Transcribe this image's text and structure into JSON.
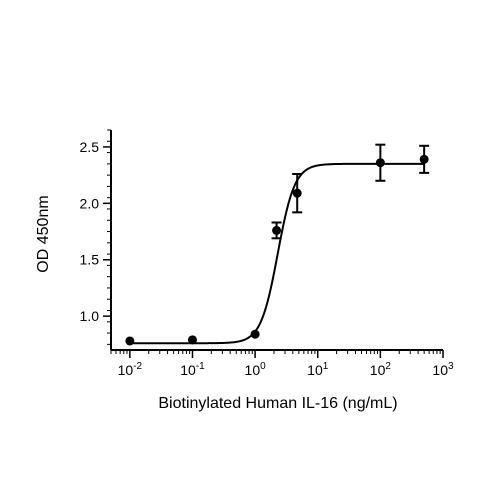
{
  "chart_data": {
    "type": "scatter",
    "title": "",
    "xlabel": "Biotinylated Human IL-16 (ng/mL)",
    "ylabel": "OD 450nm",
    "x_scale": "log",
    "xlim": [
      0.005,
      1000
    ],
    "ylim": [
      0.7,
      2.65
    ],
    "x_ticks": [
      0.01,
      0.1,
      1,
      10,
      100,
      1000
    ],
    "x_tick_labels": [
      {
        "base": "10",
        "exp": "-2"
      },
      {
        "base": "10",
        "exp": "-1"
      },
      {
        "base": "10",
        "exp": "0"
      },
      {
        "base": "10",
        "exp": "1"
      },
      {
        "base": "10",
        "exp": "2"
      },
      {
        "base": "10",
        "exp": "3"
      }
    ],
    "y_ticks": [
      1.0,
      1.5,
      2.0,
      2.5
    ],
    "y_tick_labels": [
      "1.0",
      "1.5",
      "2.0",
      "2.5"
    ],
    "grid": false,
    "color": "#000000",
    "points": [
      {
        "x": 0.01,
        "y": 0.78,
        "err": 0
      },
      {
        "x": 0.1,
        "y": 0.79,
        "err": 0
      },
      {
        "x": 1,
        "y": 0.84,
        "err": 0
      },
      {
        "x": 2.2,
        "y": 1.76,
        "err": 0.07
      },
      {
        "x": 4.7,
        "y": 2.09,
        "err": 0.17
      },
      {
        "x": 100,
        "y": 2.36,
        "err": 0.16
      },
      {
        "x": 500,
        "y": 2.39,
        "err": 0.12
      }
    ],
    "fit_curve": {
      "model": "4PL",
      "bottom": 0.76,
      "top": 2.35,
      "ec50": 2.3,
      "hill": 3.2
    }
  }
}
